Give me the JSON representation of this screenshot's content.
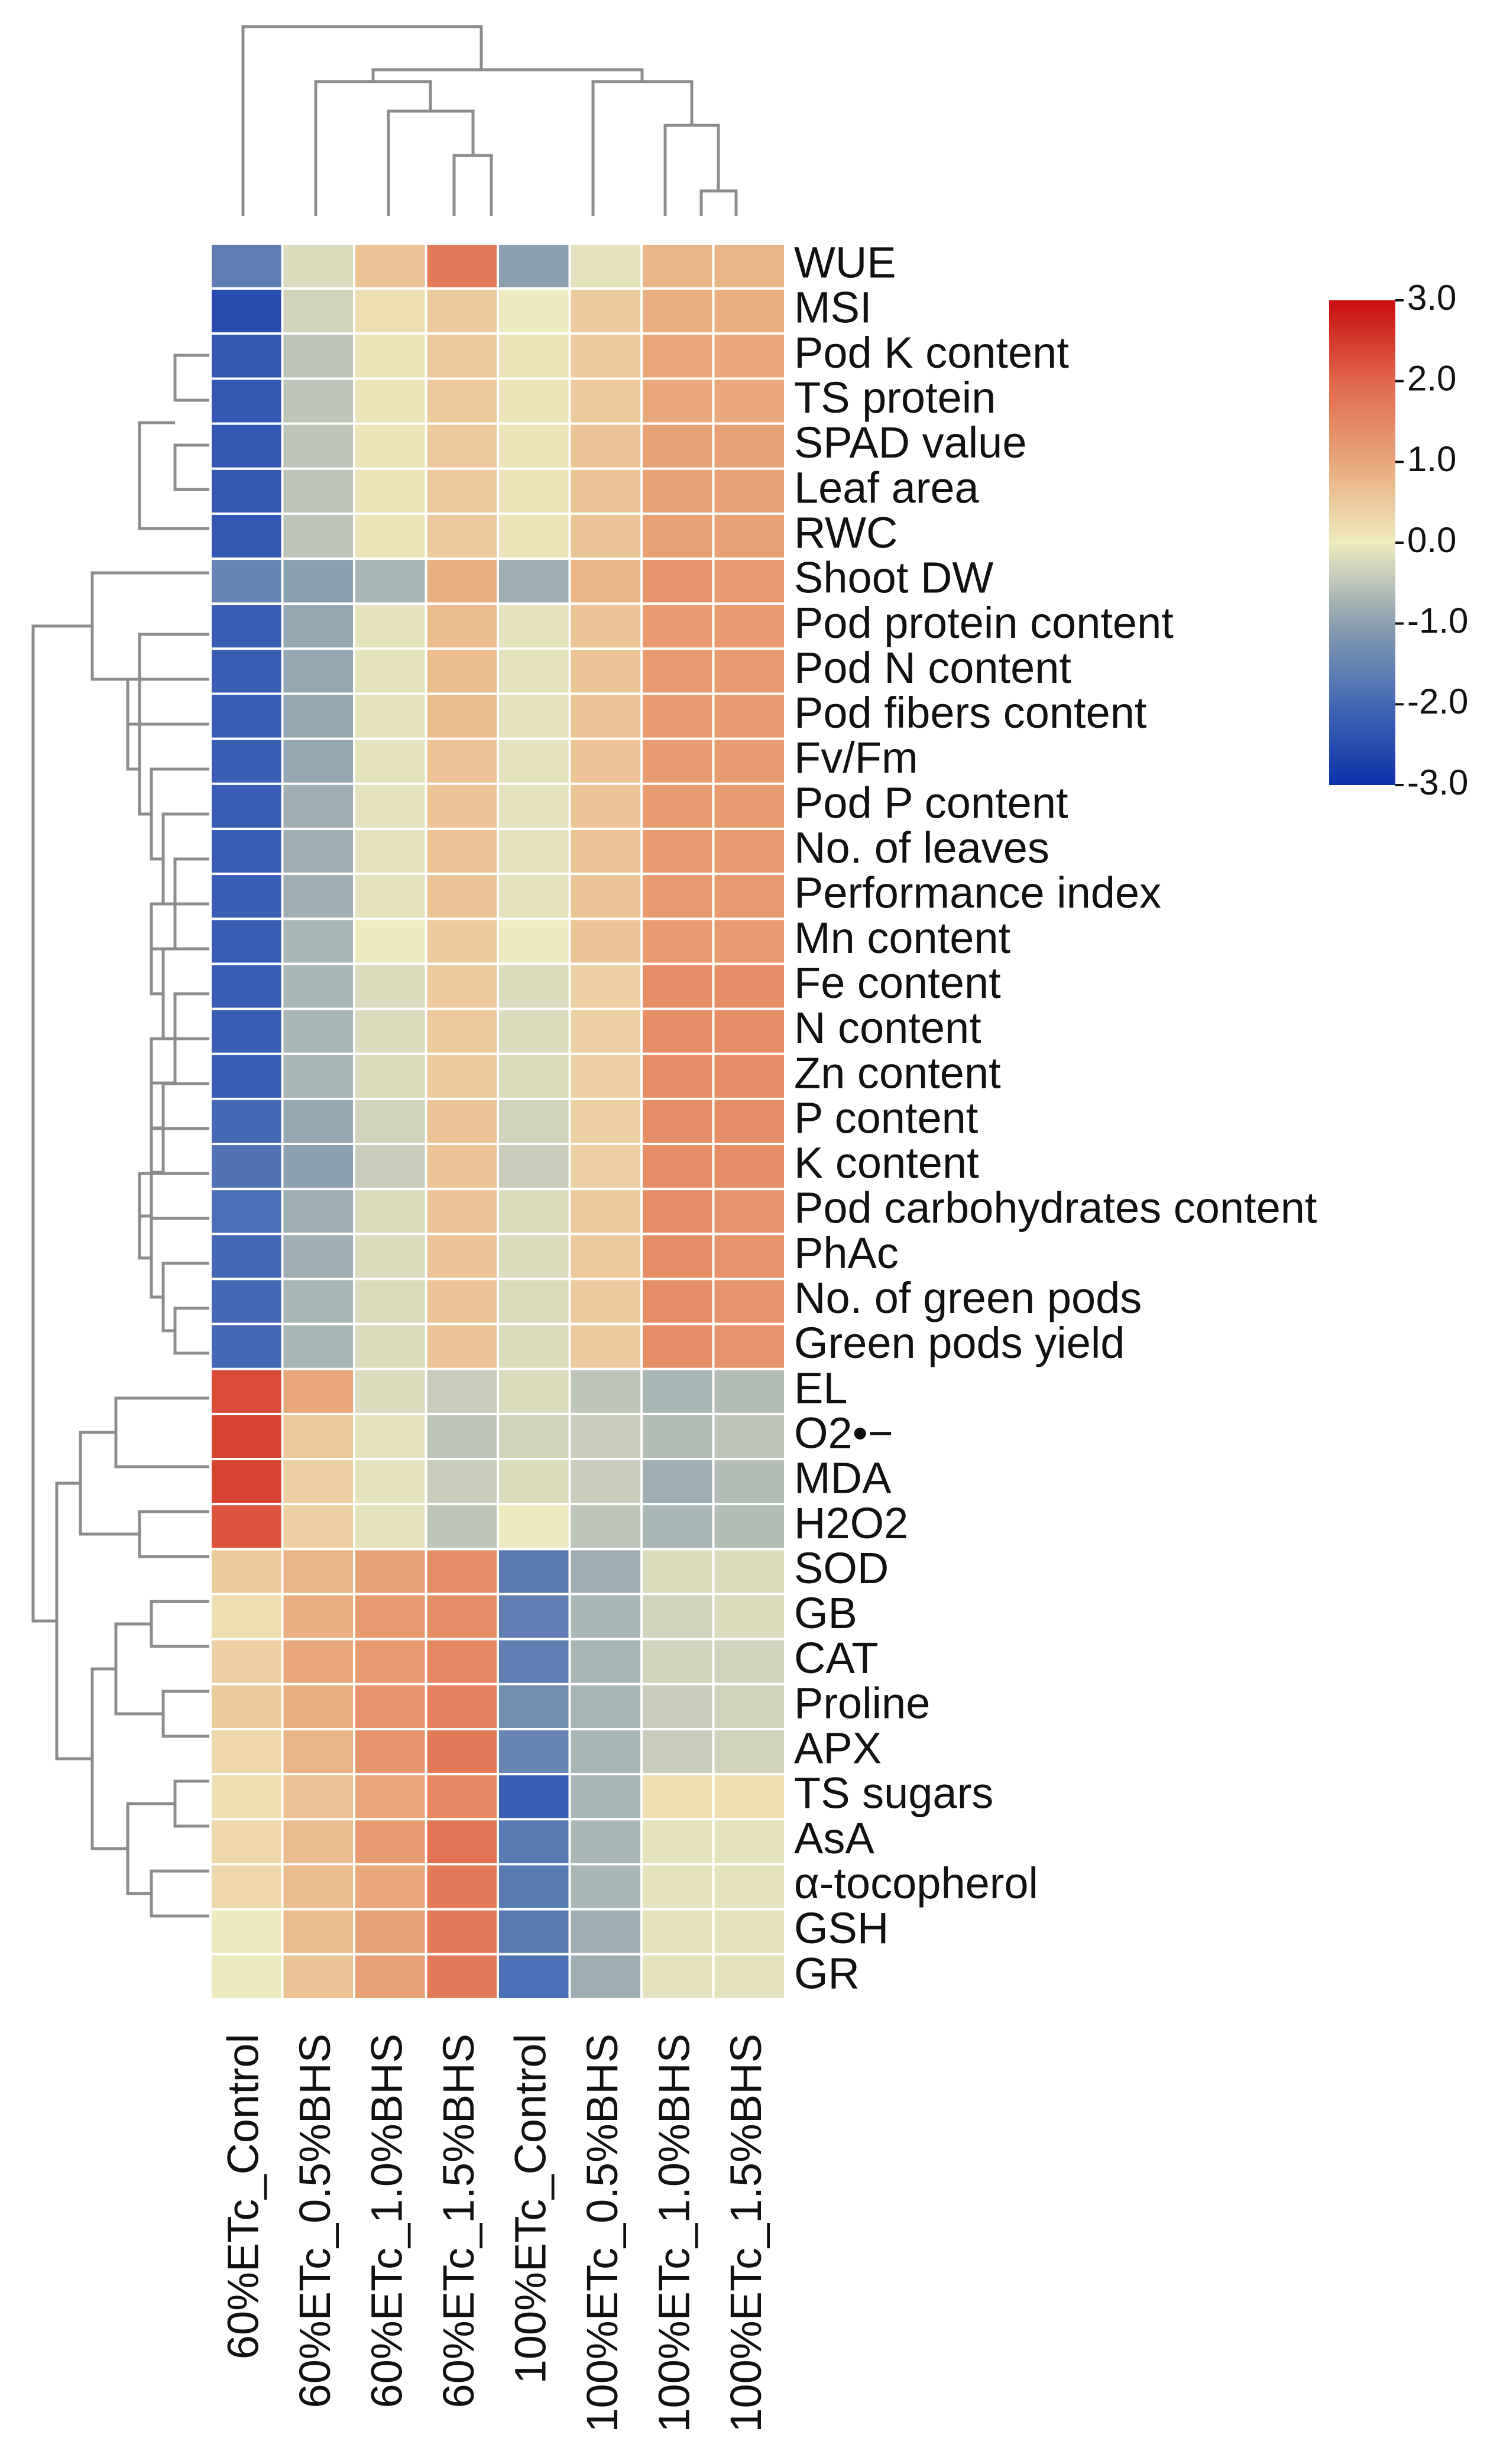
{
  "chart_data": {
    "type": "heatmap",
    "columns": [
      "60%ETc_Control",
      "60%ETc_0.5%BHS",
      "60%ETc_1.0%BHS",
      "60%ETc_1.5%BHS",
      "100%ETc_Control",
      "100%ETc_0.5%BHS",
      "100%ETc_1.0%BHS",
      "100%ETc_1.5%BHS"
    ],
    "rows": [
      "WUE",
      "MSI",
      "Pod K content",
      "TS protein",
      "SPAD value",
      "Leaf area",
      "RWC",
      "Shoot DW",
      "Pod protein content",
      "Pod N content",
      "Pod fibers content",
      "Fv/Fm",
      "Pod P content",
      "No. of leaves",
      "Performance index",
      "Mn content",
      "Fe content",
      "N content",
      "Zn content",
      "P content",
      "K content",
      "Pod carbohydrates content",
      "PhAc",
      "No. of green pods",
      "Green pods yield",
      "EL",
      "O2•−",
      "MDA",
      "H2O2",
      "SOD",
      "GB",
      "CAT",
      "Proline",
      "APX",
      "TS sugars",
      "AsA",
      "α-tocopherol",
      "GSH",
      "GR"
    ],
    "values": [
      [
        -1.6,
        -0.2,
        0.6,
        1.7,
        -1.0,
        -0.1,
        0.8,
        0.8
      ],
      [
        -2.5,
        -0.3,
        0.2,
        0.5,
        0.0,
        0.5,
        0.9,
        0.9
      ],
      [
        -2.3,
        -0.5,
        0.1,
        0.5,
        0.1,
        0.5,
        1.0,
        1.0
      ],
      [
        -2.3,
        -0.5,
        0.1,
        0.5,
        0.1,
        0.5,
        1.0,
        1.0
      ],
      [
        -2.3,
        -0.5,
        0.1,
        0.5,
        0.1,
        0.6,
        1.1,
        1.1
      ],
      [
        -2.3,
        -0.5,
        0.1,
        0.5,
        0.1,
        0.6,
        1.1,
        1.1
      ],
      [
        -2.3,
        -0.5,
        0.1,
        0.5,
        0.1,
        0.6,
        1.1,
        1.1
      ],
      [
        -1.5,
        -1.0,
        -0.7,
        0.9,
        -0.8,
        0.8,
        1.3,
        1.2
      ],
      [
        -2.2,
        -0.9,
        -0.1,
        0.7,
        -0.1,
        0.6,
        1.2,
        1.2
      ],
      [
        -2.2,
        -0.9,
        -0.1,
        0.7,
        -0.1,
        0.6,
        1.2,
        1.2
      ],
      [
        -2.2,
        -0.9,
        -0.1,
        0.7,
        -0.1,
        0.6,
        1.2,
        1.2
      ],
      [
        -2.2,
        -0.9,
        -0.1,
        0.6,
        -0.1,
        0.6,
        1.2,
        1.2
      ],
      [
        -2.2,
        -0.8,
        -0.1,
        0.6,
        -0.1,
        0.6,
        1.2,
        1.2
      ],
      [
        -2.2,
        -0.8,
        -0.1,
        0.6,
        -0.1,
        0.6,
        1.2,
        1.2
      ],
      [
        -2.2,
        -0.8,
        -0.1,
        0.6,
        -0.1,
        0.6,
        1.2,
        1.2
      ],
      [
        -2.2,
        -0.7,
        0.0,
        0.5,
        0.0,
        0.6,
        1.2,
        1.2
      ],
      [
        -2.2,
        -0.7,
        -0.2,
        0.5,
        -0.2,
        0.4,
        1.4,
        1.4
      ],
      [
        -2.2,
        -0.7,
        -0.2,
        0.5,
        -0.2,
        0.4,
        1.4,
        1.4
      ],
      [
        -2.2,
        -0.7,
        -0.2,
        0.5,
        -0.2,
        0.4,
        1.4,
        1.4
      ],
      [
        -2.0,
        -0.9,
        -0.3,
        0.6,
        -0.3,
        0.4,
        1.4,
        1.4
      ],
      [
        -1.8,
        -1.0,
        -0.4,
        0.6,
        -0.4,
        0.4,
        1.4,
        1.4
      ],
      [
        -1.9,
        -0.8,
        -0.2,
        0.6,
        -0.2,
        0.5,
        1.4,
        1.3
      ],
      [
        -2.0,
        -0.8,
        -0.2,
        0.6,
        -0.2,
        0.5,
        1.4,
        1.3
      ],
      [
        -2.0,
        -0.7,
        -0.2,
        0.6,
        -0.2,
        0.5,
        1.4,
        1.3
      ],
      [
        -2.0,
        -0.7,
        -0.2,
        0.6,
        -0.2,
        0.5,
        1.4,
        1.3
      ],
      [
        2.3,
        1.0,
        -0.2,
        -0.4,
        -0.2,
        -0.5,
        -0.7,
        -0.6
      ],
      [
        2.4,
        0.5,
        -0.1,
        -0.5,
        -0.3,
        -0.4,
        -0.6,
        -0.5
      ],
      [
        2.4,
        0.4,
        -0.1,
        -0.4,
        -0.2,
        -0.4,
        -0.8,
        -0.6
      ],
      [
        2.2,
        0.4,
        -0.1,
        -0.5,
        0.0,
        -0.5,
        -0.7,
        -0.6
      ],
      [
        0.5,
        0.8,
        1.1,
        1.4,
        -1.7,
        -0.8,
        -0.2,
        -0.2
      ],
      [
        0.2,
        0.9,
        1.2,
        1.4,
        -1.6,
        -0.7,
        -0.3,
        -0.2
      ],
      [
        0.4,
        1.0,
        1.2,
        1.5,
        -1.6,
        -0.7,
        -0.3,
        -0.3
      ],
      [
        0.5,
        0.9,
        1.3,
        1.6,
        -1.3,
        -0.7,
        -0.4,
        -0.3
      ],
      [
        0.3,
        0.8,
        1.3,
        1.7,
        -1.5,
        -0.7,
        -0.4,
        -0.3
      ],
      [
        0.2,
        0.6,
        1.0,
        1.5,
        -2.2,
        -0.7,
        0.2,
        0.2
      ],
      [
        0.3,
        0.7,
        1.2,
        1.8,
        -1.7,
        -0.7,
        -0.1,
        -0.1
      ],
      [
        0.3,
        0.7,
        1.0,
        1.7,
        -1.7,
        -0.7,
        -0.1,
        -0.1
      ],
      [
        0.0,
        0.7,
        1.1,
        1.7,
        -1.7,
        -0.8,
        -0.1,
        -0.1
      ],
      [
        0.0,
        0.6,
        1.1,
        1.7,
        -1.9,
        -0.8,
        -0.1,
        -0.1
      ]
    ],
    "color_scale": {
      "min": -3.0,
      "max": 3.0,
      "stops": [
        "#0b32a9",
        "#4468b4",
        "#8a9fb0",
        "#efebc0",
        "#e8a879",
        "#e16649",
        "#c80d0e"
      ]
    },
    "legend": {
      "ticks": [
        "3.0",
        "2.0",
        "1.0",
        "0.0",
        "-1.0",
        "-2.0",
        "-3.0"
      ],
      "placement": "top-right"
    },
    "row_dendrogram": true,
    "column_dendrogram": true
  }
}
